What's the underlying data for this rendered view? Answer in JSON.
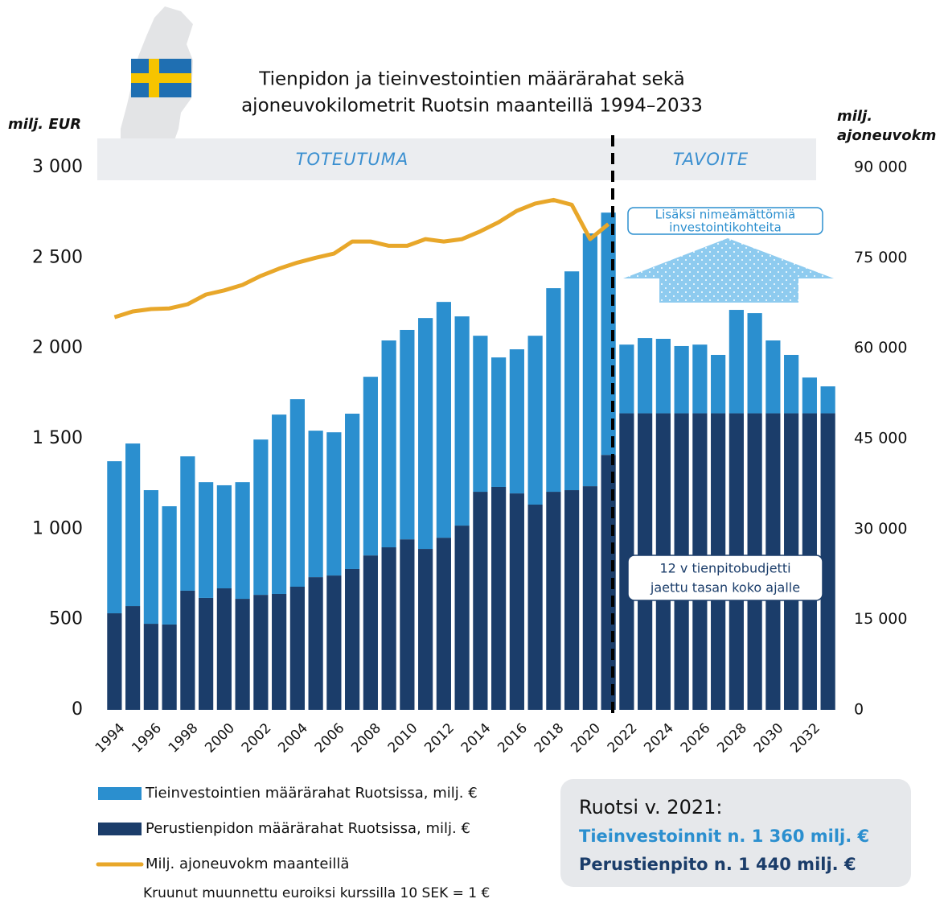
{
  "chart_data": {
    "type": "stacked-bar-line",
    "title": [
      "Tienpidon ja tieinvestointien määrärahat sekä",
      "ajoneuvokilometrit Ruotsin maanteillä 1994–2033"
    ],
    "y_label": "milj. EUR",
    "y2_label": [
      "milj.",
      "ajoneuvokm"
    ],
    "periods": [
      "TOTEUTUMA",
      "TAVOITE"
    ],
    "annotations": [
      {
        "lines": [
          "Lisäksi nimeämättömiä",
          "investointikohteita"
        ]
      },
      {
        "lines": [
          "12 v tienpitobudjetti",
          "jaettu tasan koko ajalle"
        ]
      }
    ],
    "categories": [
      "1994",
      null,
      "1996",
      null,
      "1998",
      null,
      "2000",
      null,
      "2002",
      null,
      "2004",
      null,
      "2006",
      null,
      "2008",
      null,
      "2010",
      null,
      "2012",
      null,
      "2014",
      null,
      "2016",
      null,
      "2018",
      null,
      "2020",
      null,
      "2022",
      null,
      "2024",
      null,
      "2026",
      null,
      "2028",
      null,
      "2030",
      null,
      "2032",
      null
    ],
    "series": [
      {
        "name": "Perustienpidon määrärahat Ruotsissa, milj. €",
        "color": "#1b3d6a",
        "values": [
          534,
          574,
          476,
          472,
          659,
          619,
          672,
          614,
          636,
          641,
          681,
          734,
          743,
          779,
          854,
          899,
          943,
          890,
          952,
          1019,
          1206,
          1233,
          1197,
          1135,
          1206,
          1215,
          1237,
          1410,
          1640,
          1640,
          1640,
          1640,
          1640,
          1640,
          1640,
          1640,
          1640,
          1640,
          1640,
          1640
        ]
      },
      {
        "name": "Tieinvestointien määrärahat Ruotsissa, milj. €",
        "color": "#2b8fcf",
        "values": [
          841,
          899,
          739,
          654,
          743,
          640,
          570,
          645,
          859,
          992,
          1037,
          810,
          792,
          859,
          988,
          1144,
          1158,
          1277,
          1304,
          1157,
          863,
          716,
          797,
          934,
          1126,
          1210,
          1398,
          1340,
          380,
          416,
          412,
          372,
          380,
          323,
          572,
          554,
          403,
          323,
          198,
          149
        ]
      },
      {
        "name": "Milj. ajoneuvokm maanteillä",
        "color": "#e8a72a",
        "axis": "y2",
        "values": [
          65150,
          66100,
          66500,
          66600,
          67300,
          68900,
          69600,
          70500,
          72000,
          73200,
          74200,
          75000,
          75700,
          77700,
          77700,
          77000,
          77000,
          78100,
          77700,
          78100,
          79400,
          80900,
          82800,
          84000,
          84600,
          83800,
          78100,
          80600,
          null,
          null,
          null,
          null,
          null,
          null,
          null,
          null,
          null,
          null,
          null,
          null
        ]
      }
    ],
    "ylim": [
      0,
      3000
    ],
    "yticks": [
      0,
      500,
      {
        "value": 1000,
        "label": "1 000"
      },
      {
        "value": 1500,
        "label": "1 500"
      },
      {
        "value": 2000,
        "label": "2 000"
      },
      {
        "value": 2500,
        "label": "2 500"
      },
      {
        "value": 3000,
        "label": "3 000"
      }
    ],
    "y2lim": [
      0,
      90000
    ],
    "y2ticks": [
      0,
      {
        "value": 15000,
        "label": "15 000"
      },
      {
        "value": 30000,
        "label": "30 000"
      },
      {
        "value": 45000,
        "label": "45 000"
      },
      {
        "value": 60000,
        "label": "60 000"
      },
      {
        "value": 75000,
        "label": "75 000"
      },
      {
        "value": 90000,
        "label": "90 000"
      }
    ],
    "grid": false,
    "note": "Kruunut muunnettu euroiksi kurssilla 10 SEK = 1 €",
    "summary": {
      "title": "Ruotsi v. 2021:",
      "lines": [
        "Tieinvestoinnit n. 1 360 milj. €",
        "Perustienpito n. 1 440 milj. €"
      ]
    }
  }
}
